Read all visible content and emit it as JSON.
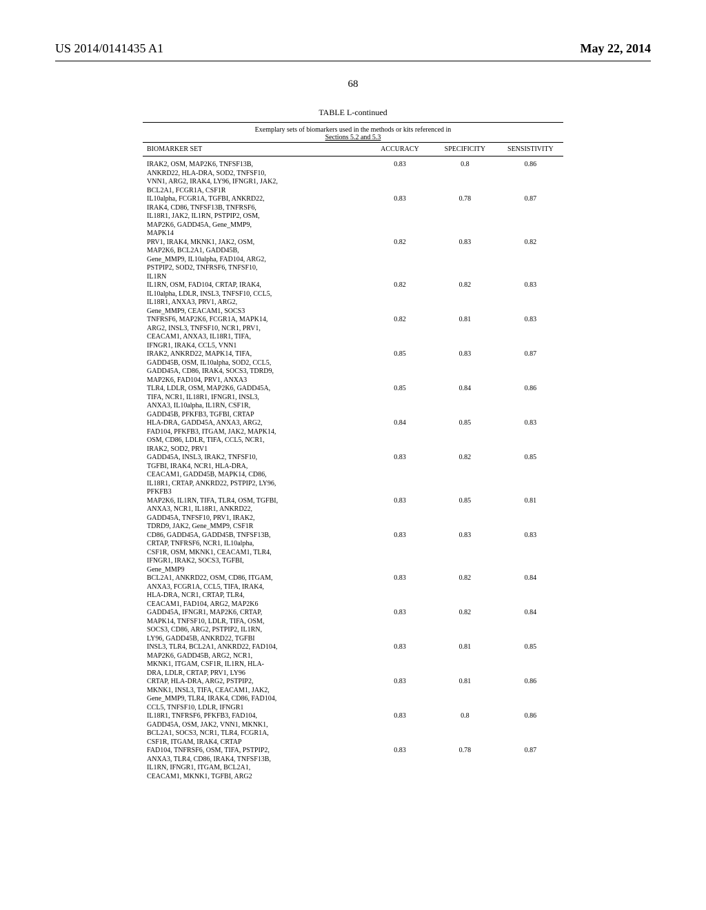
{
  "header": {
    "pub_id": "US 2014/0141435 A1",
    "pub_date": "May 22, 2014"
  },
  "page_number": "68",
  "table": {
    "title": "TABLE L-continued",
    "caption_l1": "Exemplary sets of biomarkers used in the methods or kits referenced in",
    "caption_l2": "Sections 5.2 and 5.3",
    "columns": [
      "BIOMARKER SET",
      "ACCURACY",
      "SPECIFICITY",
      "SENSISTIVITY"
    ],
    "rows": [
      {
        "lines": [
          "IRAK2, OSM, MAP2K6, TNFSF13B,",
          "ANKRD22, HLA-DRA, SOD2, TNFSF10,",
          "VNN1, ARG2, IRAK4, LY96, IFNGR1, JAK2,",
          "BCL2A1, FCGR1A, CSF1R"
        ],
        "acc": "0.83",
        "spec": "0.8",
        "sens": "0.86"
      },
      {
        "lines": [
          "IL10alpha, FCGR1A, TGFBI, ANKRD22,",
          "IRAK4, CD86, TNFSF13B, TNFRSF6,",
          "IL18R1, JAK2, IL1RN, PSTPIP2, OSM,",
          "MAP2K6, GADD45A, Gene_MMP9,",
          "MAPK14"
        ],
        "acc": "0.83",
        "spec": "0.78",
        "sens": "0.87"
      },
      {
        "lines": [
          "PRV1, IRAK4, MKNK1, JAK2, OSM,",
          "MAP2K6, BCL2A1, GADD45B,",
          "Gene_MMP9, IL10alpha, FAD104, ARG2,",
          "PSTPIP2, SOD2, TNFRSF6, TNFSF10,",
          "IL1RN"
        ],
        "acc": "0.82",
        "spec": "0.83",
        "sens": "0.82"
      },
      {
        "lines": [
          "IL1RN, OSM, FAD104, CRTAP, IRAK4,",
          "IL10alpha, LDLR, INSL3, TNFSF10, CCL5,",
          "IL18R1, ANXA3, PRV1, ARG2,",
          "Gene_MMP9, CEACAM1, SOCS3"
        ],
        "acc": "0.82",
        "spec": "0.82",
        "sens": "0.83"
      },
      {
        "lines": [
          "TNFRSF6, MAP2K6, FCGR1A, MAPK14,",
          "ARG2, INSL3, TNFSF10, NCR1, PRV1,",
          "CEACAM1, ANXA3, IL18R1, TIFA,",
          "IFNGR1, IRAK4, CCL5, VNN1"
        ],
        "acc": "0.82",
        "spec": "0.81",
        "sens": "0.83"
      },
      {
        "lines": [
          "IRAK2, ANKRD22, MAPK14, TIFA,",
          "GADD45B, OSM, IL10alpha, SOD2, CCL5,",
          "GADD45A, CD86, IRAK4, SOCS3, TDRD9,",
          "MAP2K6, FAD104, PRV1, ANXA3"
        ],
        "acc": "0.85",
        "spec": "0.83",
        "sens": "0.87"
      },
      {
        "lines": [
          "TLR4, LDLR, OSM, MAP2K6, GADD45A,",
          "TIFA, NCR1, IL18R1, IFNGR1, INSL3,",
          "ANXA3, IL10alpha, IL1RN, CSF1R,",
          "GADD45B, PFKFB3, TGFBI, CRTAP"
        ],
        "acc": "0.85",
        "spec": "0.84",
        "sens": "0.86"
      },
      {
        "lines": [
          "HLA-DRA, GADD45A, ANXA3, ARG2,",
          "FAD104, PFKFB3, ITGAM, JAK2, MAPK14,",
          "OSM, CD86, LDLR, TIFA, CCL5, NCR1,",
          "IRAK2, SOD2, PRV1"
        ],
        "acc": "0.84",
        "spec": "0.85",
        "sens": "0.83"
      },
      {
        "lines": [
          "GADD45A, INSL3, IRAK2, TNFSF10,",
          "TGFBI, IRAK4, NCR1, HLA-DRA,",
          "CEACAM1, GADD45B, MAPK14, CD86,",
          "IL18R1, CRTAP, ANKRD22, PSTPIP2, LY96,",
          "PFKFB3"
        ],
        "acc": "0.83",
        "spec": "0.82",
        "sens": "0.85"
      },
      {
        "lines": [
          "MAP2K6, IL1RN, TIFA, TLR4, OSM, TGFBI,",
          "ANXA3, NCR1, IL18R1, ANKRD22,",
          "GADD45A, TNFSF10, PRV1, IRAK2,",
          "TDRD9, JAK2, Gene_MMP9, CSF1R"
        ],
        "acc": "0.83",
        "spec": "0.85",
        "sens": "0.81"
      },
      {
        "lines": [
          "CD86, GADD45A, GADD45B, TNFSF13B,",
          "CRTAP, TNFRSF6, NCR1, IL10alpha,",
          "CSF1R, OSM, MKNK1, CEACAM1, TLR4,",
          "IFNGR1, IRAK2, SOCS3, TGFBI,",
          "Gene_MMP9"
        ],
        "acc": "0.83",
        "spec": "0.83",
        "sens": "0.83"
      },
      {
        "lines": [
          "BCL2A1, ANKRD22, OSM, CD86, ITGAM,",
          "ANXA3, FCGR1A, CCL5, TIFA, IRAK4,",
          "HLA-DRA, NCR1, CRTAP, TLR4,",
          "CEACAM1, FAD104, ARG2, MAP2K6"
        ],
        "acc": "0.83",
        "spec": "0.82",
        "sens": "0.84"
      },
      {
        "lines": [
          "GADD45A, IFNGR1, MAP2K6, CRTAP,",
          "MAPK14, TNFSF10, LDLR, TIFA, OSM,",
          "SOCS3, CD86, ARG2, PSTPIP2, IL1RN,",
          "LY96, GADD45B, ANKRD22, TGFBI"
        ],
        "acc": "0.83",
        "spec": "0.82",
        "sens": "0.84"
      },
      {
        "lines": [
          "INSL3, TLR4, BCL2A1, ANKRD22, FAD104,",
          "MAP2K6, GADD45B, ARG2, NCR1,",
          "MKNK1, ITGAM, CSF1R, IL1RN, HLA-",
          "DRA, LDLR, CRTAP, PRV1, LY96"
        ],
        "acc": "0.83",
        "spec": "0.81",
        "sens": "0.85"
      },
      {
        "lines": [
          "CRTAP, HLA-DRA, ARG2, PSTPIP2,",
          "MKNK1, INSL3, TIFA, CEACAM1, JAK2,",
          "Gene_MMP9, TLR4, IRAK4, CD86, FAD104,",
          "CCL5, TNFSF10, LDLR, IFNGR1"
        ],
        "acc": "0.83",
        "spec": "0.81",
        "sens": "0.86"
      },
      {
        "lines": [
          "IL18R1, TNFRSF6, PFKFB3, FAD104,",
          "GADD45A, OSM, JAK2, VNN1, MKNK1,",
          "BCL2A1, SOCS3, NCR1, TLR4, FCGR1A,",
          "CSF1R, ITGAM, IRAK4, CRTAP"
        ],
        "acc": "0.83",
        "spec": "0.8",
        "sens": "0.86"
      },
      {
        "lines": [
          "FAD104, TNFRSF6, OSM, TIFA, PSTPIP2,",
          "ANXA3, TLR4, CD86, IRAK4, TNFSF13B,",
          "IL1RN, IFNGR1, ITGAM, BCL2A1,",
          "CEACAM1, MKNK1, TGFBI, ARG2"
        ],
        "acc": "0.83",
        "spec": "0.78",
        "sens": "0.87"
      }
    ]
  }
}
